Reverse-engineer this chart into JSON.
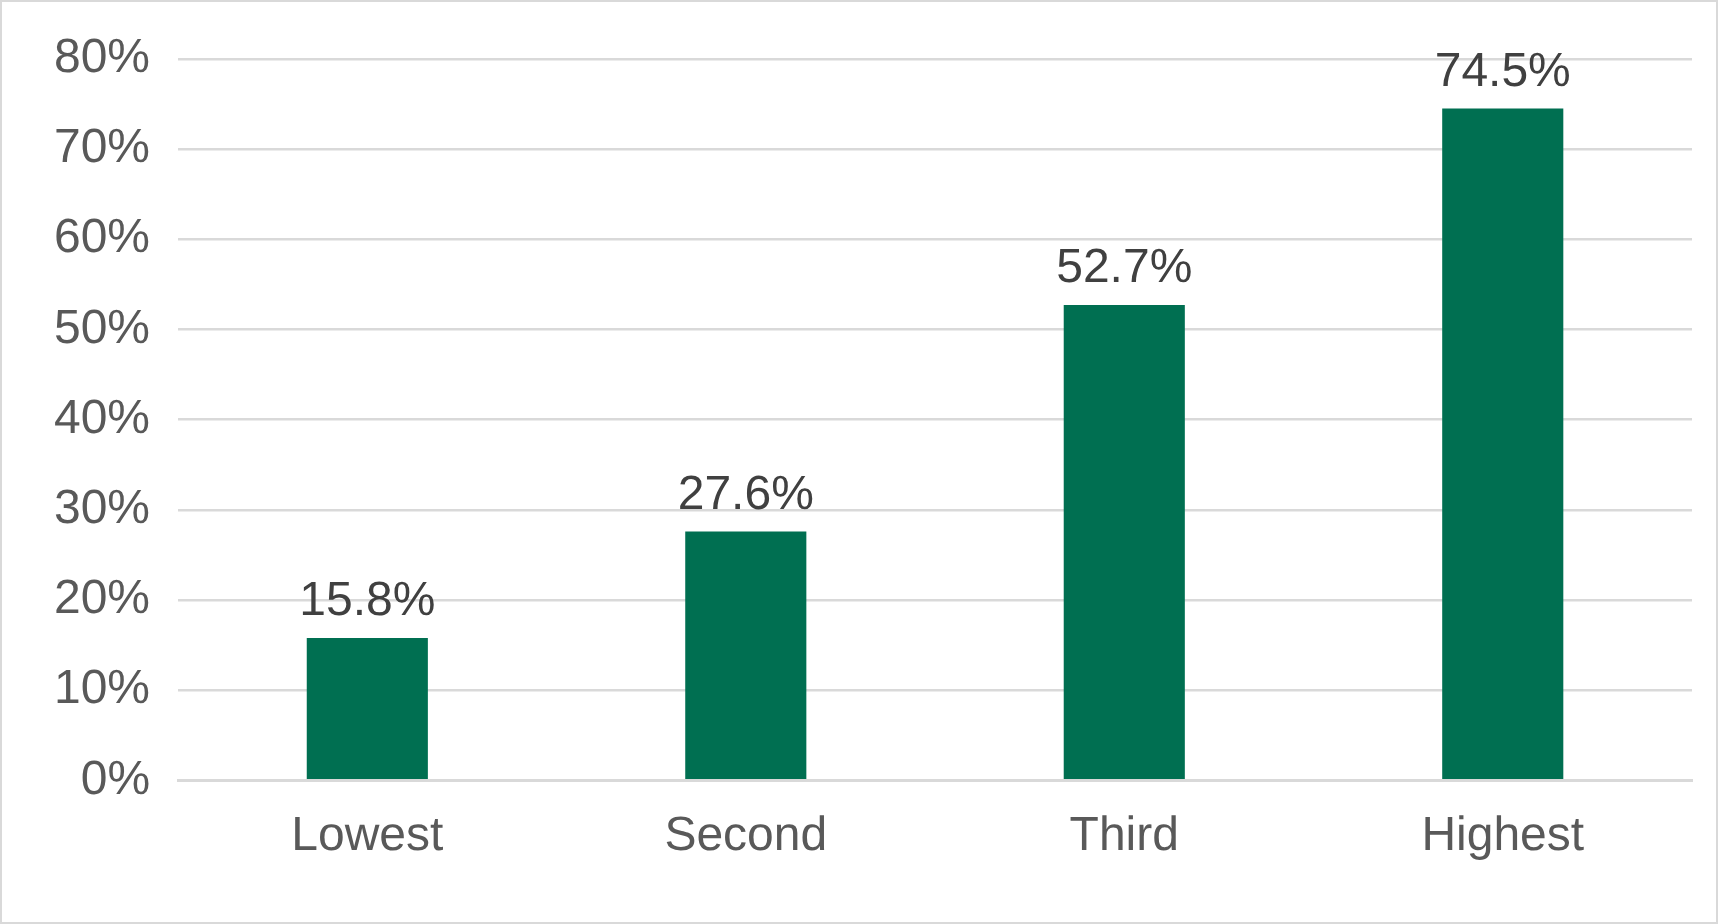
{
  "chart_data": {
    "type": "bar",
    "categories": [
      "Lowest",
      "Second",
      "Third",
      "Highest"
    ],
    "values": [
      15.8,
      27.6,
      52.7,
      74.5
    ],
    "color": "#006f51",
    "value_labels": [
      "15.8%",
      "27.6%",
      "52.7%",
      "74.5%"
    ],
    "ylim": [
      0,
      80
    ],
    "yticks": [
      {
        "value": 0,
        "label": "0%"
      },
      {
        "value": 10,
        "label": "10%"
      },
      {
        "value": 20,
        "label": "20%"
      },
      {
        "value": 30,
        "label": "30%"
      },
      {
        "value": 40,
        "label": "40%"
      },
      {
        "value": 50,
        "label": "50%"
      },
      {
        "value": 60,
        "label": "60%"
      },
      {
        "value": 70,
        "label": "70%"
      },
      {
        "value": 80,
        "label": "80%"
      }
    ],
    "grid": "y",
    "legend": false
  }
}
